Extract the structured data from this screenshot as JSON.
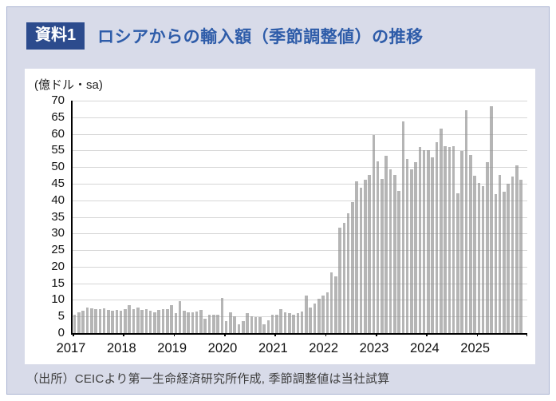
{
  "header": {
    "badge": "資料1",
    "title": "ロシアからの輸入額（季節調整値）の推移"
  },
  "footer": {
    "source": "（出所）CEICより第一生命経済研究所作成, 季節調整値は当社試算"
  },
  "chart_data": {
    "type": "bar",
    "title": "ロシアからの輸入額（季節調整値）の推移",
    "unit_label": "(億ドル・sa)",
    "ylabel": "億ドル（季節調整値）",
    "ylim": [
      0,
      70
    ],
    "ytick_step": 5,
    "grid": true,
    "bar_color": "#b7b7b7",
    "x_year_labels": [
      "2017",
      "2018",
      "2019",
      "2020",
      "2021",
      "2022",
      "2023",
      "2024",
      "2025"
    ],
    "x_start_month": "2017-01",
    "x_end_month": "2025-11",
    "x_axis_total_slots": 108,
    "values_by_year": {
      "2017": [
        5.5,
        6.2,
        6.7,
        7.8,
        7.5,
        7.3,
        7.1,
        7.5,
        7.0,
        6.7,
        7.0,
        6.7
      ],
      "2018": [
        7.3,
        8.4,
        7.2,
        7.8,
        7.0,
        7.2,
        6.8,
        6.2,
        7.0,
        7.2,
        7.3,
        8.5
      ],
      "2019": [
        6.0,
        9.6,
        6.7,
        6.2,
        6.3,
        6.5,
        7.0,
        4.3,
        5.5,
        5.5,
        5.5,
        10.5
      ],
      "2020": [
        3.5,
        6.3,
        5.1,
        2.7,
        3.5,
        5.9,
        5.1,
        4.7,
        4.9,
        2.7,
        3.9,
        5.5
      ],
      "2021": [
        5.5,
        7.3,
        6.3,
        5.9,
        5.5,
        5.9,
        6.5,
        11.2,
        7.8,
        8.8,
        10.4,
        11.2
      ],
      "2022": [
        12.3,
        18.3,
        17.2,
        31.7,
        33.3,
        36.1,
        39.5,
        45.7,
        43.9,
        46.1,
        47.7,
        59.7
      ],
      "2023": [
        51.7,
        46.5,
        53.3,
        49.3,
        47.7,
        42.9,
        63.8,
        52.5,
        49.2,
        51.6,
        56.0,
        55.0
      ],
      "2024": [
        55.2,
        53.0,
        57.4,
        61.7,
        56.2,
        56.0,
        56.2,
        42.1,
        54.8,
        67.0,
        53.6,
        47.3
      ],
      "2025": [
        45.3,
        44.3,
        51.6,
        68.4,
        41.9,
        47.6,
        42.7,
        45.1,
        47.2,
        50.5,
        46.1
      ]
    }
  }
}
